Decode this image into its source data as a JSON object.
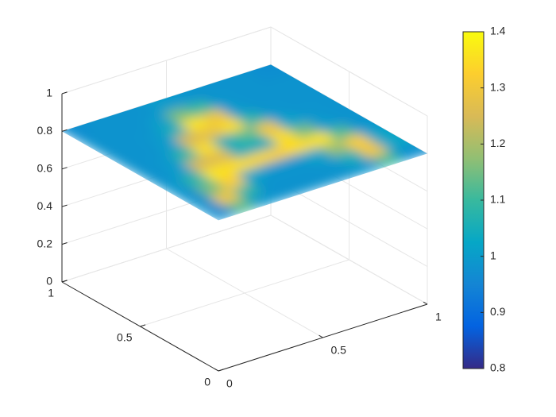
{
  "chart_data": {
    "type": "surface",
    "xlim": [
      0,
      1
    ],
    "ylim": [
      0,
      1
    ],
    "zlim": [
      0,
      1
    ],
    "xticks": [
      0,
      0.5,
      1
    ],
    "yticks": [
      0,
      0.5,
      1
    ],
    "zticks": [
      0,
      0.2,
      0.4,
      0.6,
      0.8,
      1
    ],
    "grid": true,
    "plane_z": 0.8,
    "x": [
      0.05,
      0.15,
      0.25,
      0.35,
      0.45,
      0.55,
      0.65,
      0.75,
      0.85,
      0.95
    ],
    "y": [
      0.05,
      0.15,
      0.25,
      0.35,
      0.45,
      0.55,
      0.65,
      0.75,
      0.85,
      0.95
    ],
    "values": [
      [
        0.97,
        1.12,
        0.99,
        0.98,
        0.98,
        0.98,
        0.98,
        0.99,
        1.1,
        0.97
      ],
      [
        0.98,
        1.3,
        1.08,
        0.98,
        0.98,
        0.98,
        0.99,
        1.05,
        1.3,
        1.02
      ],
      [
        0.98,
        1.15,
        1.32,
        1.02,
        0.99,
        0.99,
        1.02,
        1.18,
        1.32,
        1.02
      ],
      [
        0.99,
        1.08,
        1.36,
        1.35,
        1.34,
        1.33,
        1.35,
        1.36,
        1.12,
        0.99
      ],
      [
        0.98,
        1.0,
        1.25,
        1.26,
        1.05,
        1.04,
        1.35,
        1.15,
        1.0,
        0.98
      ],
      [
        0.98,
        0.99,
        1.08,
        1.35,
        1.05,
        1.12,
        1.3,
        1.02,
        0.99,
        0.98
      ],
      [
        0.98,
        0.98,
        1.0,
        1.25,
        1.28,
        1.35,
        1.08,
        0.99,
        0.98,
        0.98
      ],
      [
        0.98,
        0.98,
        0.99,
        1.05,
        1.36,
        1.3,
        1.0,
        0.98,
        0.98,
        0.98
      ],
      [
        0.98,
        0.98,
        0.98,
        1.0,
        1.15,
        1.1,
        0.99,
        0.98,
        0.98,
        0.98
      ],
      [
        0.97,
        0.98,
        0.98,
        0.98,
        1.0,
        0.99,
        0.98,
        0.98,
        0.98,
        0.97
      ]
    ],
    "clim": [
      0.8,
      1.4
    ],
    "cticks": [
      0.8,
      0.9,
      1,
      1.1,
      1.2,
      1.3,
      1.4
    ],
    "colormap": [
      "#352a87",
      "#0363e1",
      "#1485d4",
      "#06a7c6",
      "#38b99e",
      "#92bf73",
      "#d9ba56",
      "#fcce2e",
      "#f9fb0e"
    ]
  }
}
